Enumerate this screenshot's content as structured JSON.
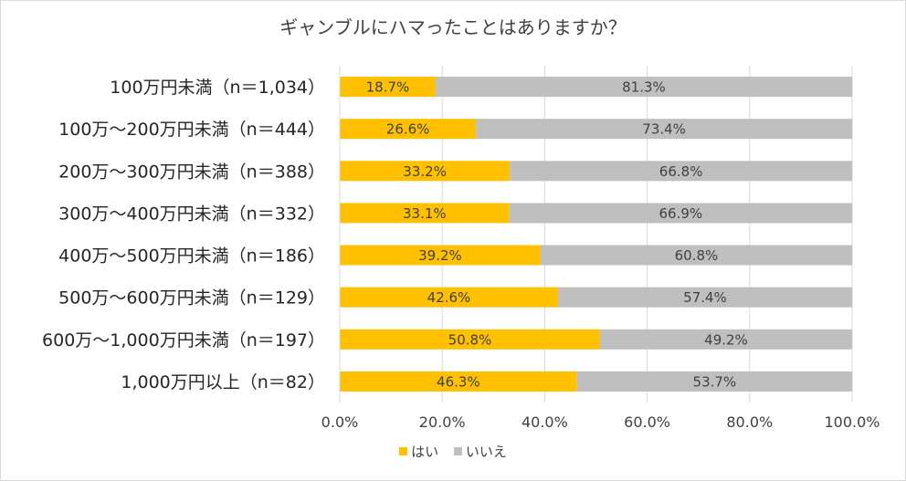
{
  "chart_data": {
    "type": "bar",
    "orientation": "horizontal",
    "stacked": "percent",
    "title": "ギャンブルにハマったことはありますか？",
    "categories": [
      "100万円未満（n＝1,034）",
      "100万～200万円未満（n＝444）",
      "200万～300万円未満（n＝388）",
      "300万～400万円未満（n＝332）",
      "400万～500万円未満（n＝186）",
      "500万～600万円未満（n＝129）",
      "600万～1,000万円未満（n＝197）",
      "1,000万円以上（n＝82）"
    ],
    "series": [
      {
        "name": "はい",
        "color": "#FFC000",
        "values": [
          18.7,
          26.6,
          33.2,
          33.1,
          39.2,
          42.6,
          50.8,
          46.3
        ],
        "labels": [
          "18.7%",
          "26.6%",
          "33.2%",
          "33.1%",
          "39.2%",
          "42.6%",
          "50.8%",
          "46.3%"
        ]
      },
      {
        "name": "いいえ",
        "color": "#BFBFBF",
        "values": [
          81.3,
          73.4,
          66.8,
          66.9,
          60.8,
          57.4,
          49.2,
          53.7
        ],
        "labels": [
          "81.3%",
          "73.4%",
          "66.8%",
          "66.9%",
          "60.8%",
          "57.4%",
          "49.2%",
          "53.7%"
        ]
      }
    ],
    "xlim": [
      0,
      100
    ],
    "xticks": [
      "0.0%",
      "20.0%",
      "40.0%",
      "60.0%",
      "80.0%",
      "100.0%"
    ],
    "grid": true,
    "legend_position": "bottom"
  }
}
